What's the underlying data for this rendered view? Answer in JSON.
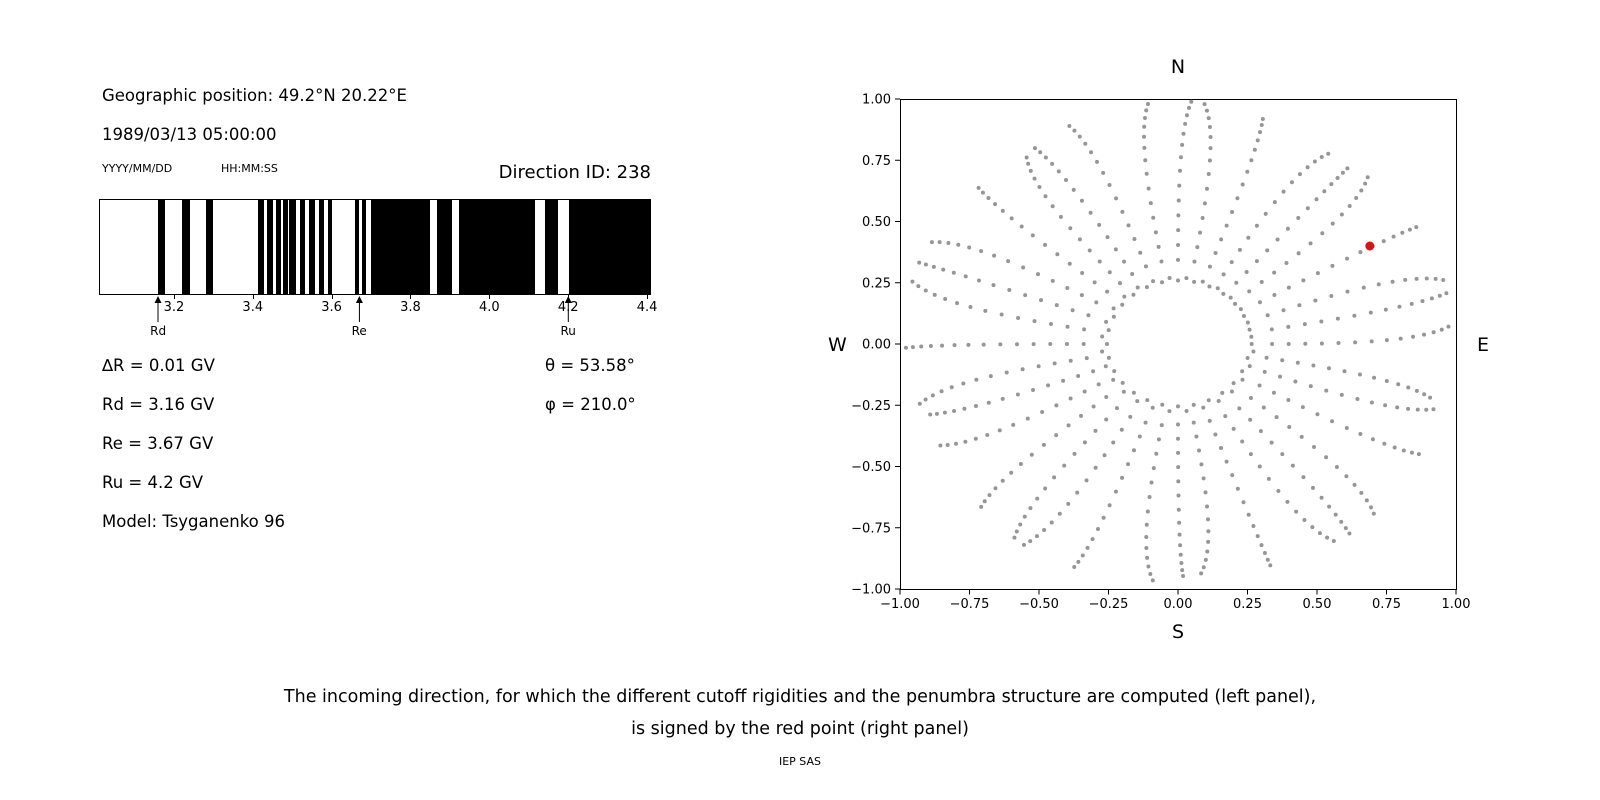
{
  "page": {
    "background": "#ffffff"
  },
  "left_panel": {
    "geo_position": "Geographic position: 49.2°N 20.22°E",
    "datetime": "1989/03/13 05:00:00",
    "date_format_label": "YYYY/MM/DD",
    "time_format_label": "HH:MM:SS",
    "direction_id_label": "Direction ID: 238",
    "info_left": [
      "∆R = 0.01 GV",
      "Rd = 3.16 GV",
      "Re = 3.67 GV",
      "Ru = 4.2 GV",
      "Model: Tsyganenko 96"
    ],
    "info_right": [
      "θ = 53.58°",
      "φ = 210.0°"
    ]
  },
  "caption": {
    "line1": "The incoming direction, for which the different cutoff rigidities and the penumbra structure are computed (left panel),",
    "line2": "is signed by the red point (right panel)",
    "credit": "IEP SAS"
  },
  "chart_data": [
    {
      "type": "bar",
      "name": "penumbra-structure",
      "description": "Cutoff rigidity penumbra: black bands mark allowed rigidity intervals in GV",
      "xlim": [
        3.01,
        4.41
      ],
      "xticks": [
        3.2,
        3.4,
        3.6,
        3.8,
        4.0,
        4.2,
        4.4
      ],
      "xtick_labels": [
        "3.2",
        "3.4",
        "3.6",
        "3.8",
        "4.0",
        "4.2",
        "4.4"
      ],
      "bar_color": "#000000",
      "allowed_bands_gv": [
        [
          3.157,
          3.175
        ],
        [
          3.218,
          3.238
        ],
        [
          3.279,
          3.297
        ],
        [
          3.411,
          3.428
        ],
        [
          3.436,
          3.451
        ],
        [
          3.459,
          3.472
        ],
        [
          3.477,
          3.489
        ],
        [
          3.492,
          3.51
        ],
        [
          3.52,
          3.532
        ],
        [
          3.543,
          3.558
        ],
        [
          3.568,
          3.581
        ],
        [
          3.591,
          3.601
        ],
        [
          3.659,
          3.669
        ],
        [
          3.677,
          3.687
        ],
        [
          3.7,
          3.849
        ],
        [
          3.867,
          3.905
        ],
        [
          3.923,
          4.118
        ],
        [
          4.143,
          4.176
        ],
        [
          4.204,
          4.41
        ]
      ],
      "markers": [
        {
          "label": "Rd",
          "value_gv": 3.16
        },
        {
          "label": "Re",
          "value_gv": 3.67
        },
        {
          "label": "Ru",
          "value_gv": 4.2
        }
      ]
    },
    {
      "type": "scatter",
      "name": "incoming-directions",
      "xlim": [
        -1,
        1
      ],
      "ylim": [
        -1,
        1
      ],
      "xticks": [
        -1,
        -0.75,
        -0.5,
        -0.25,
        0,
        0.25,
        0.5,
        0.75,
        1
      ],
      "yticks": [
        -1,
        -0.75,
        -0.5,
        -0.25,
        0,
        0.25,
        0.5,
        0.75,
        1
      ],
      "xtick_labels": [
        "−1.00",
        "−0.75",
        "−0.50",
        "−0.25",
        "0.00",
        "0.25",
        "0.50",
        "0.75",
        "1.00"
      ],
      "ytick_labels": [
        "−1.00",
        "−0.75",
        "−0.50",
        "−0.25",
        "0.00",
        "0.25",
        "0.50",
        "0.75",
        "1.00"
      ],
      "compass_labels": {
        "top": "N",
        "bottom": "S",
        "left": "W",
        "right": "E"
      },
      "point_color": "#969696",
      "gray_points": {
        "ring_radius": 0.265,
        "ring_count": 56,
        "spoke_count": 36,
        "spoke_start_deg": 0,
        "spoke_step_deg": 10,
        "spoke_radii": [
          0.34,
          0.4,
          0.46,
          0.52,
          0.58,
          0.64,
          0.7,
          0.755,
          0.805,
          0.85,
          0.89,
          0.925,
          0.955,
          0.98
        ]
      },
      "highlight_point": {
        "x": 0.69,
        "y": 0.4,
        "color": "#dd1111"
      }
    }
  ]
}
